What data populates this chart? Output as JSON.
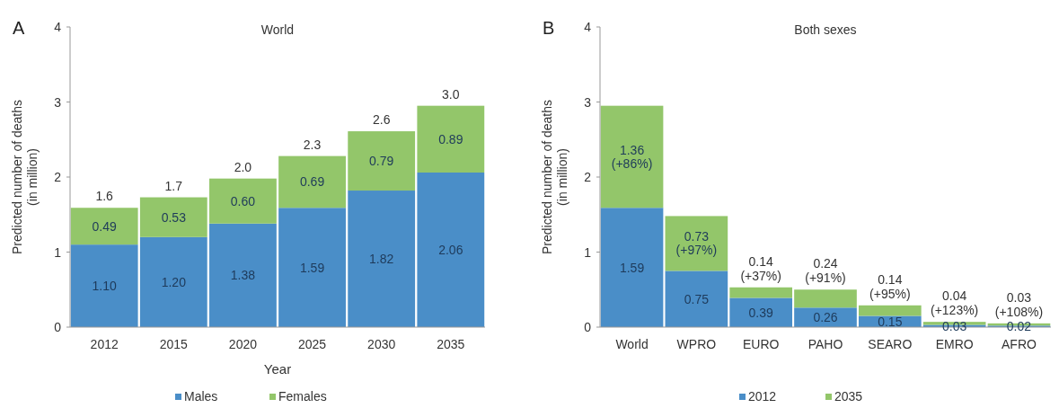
{
  "chart_data": [
    {
      "type": "bar",
      "stacked": true,
      "title": "World",
      "xlabel": "Year",
      "ylabel": "Predicted number of deaths (in million)",
      "annotations": [
        "A"
      ],
      "categories": [
        "2012",
        "2015",
        "2020",
        "2025",
        "2030",
        "2035"
      ],
      "ylim": [
        0,
        4
      ],
      "yticks": [
        0,
        1,
        2,
        3,
        4
      ],
      "legend": "bottom",
      "totals": [
        "1.6",
        "1.7",
        "2.0",
        "2.3",
        "2.6",
        "3.0"
      ],
      "series": [
        {
          "name": "Males",
          "color": "#4a8ec8",
          "values": [
            1.1,
            1.2,
            1.38,
            1.59,
            1.82,
            2.06
          ],
          "value_labels": [
            "1.10",
            "1.20",
            "1.38",
            "1.59",
            "1.82",
            "2.06"
          ]
        },
        {
          "name": "Females",
          "color": "#93c66a",
          "values": [
            0.49,
            0.53,
            0.6,
            0.69,
            0.79,
            0.89
          ],
          "value_labels": [
            "0.49",
            "0.53",
            "0.60",
            "0.69",
            "0.79",
            "0.89"
          ]
        }
      ]
    },
    {
      "type": "bar",
      "stacked": true,
      "title": "Both sexes",
      "ylabel": "Predicted number of deaths (in million)",
      "annotations": [
        "B"
      ],
      "categories": [
        "World",
        "WPRO",
        "EURO",
        "PAHO",
        "SEARO",
        "EMRO",
        "AFRO"
      ],
      "ylim": [
        0,
        4
      ],
      "yticks": [
        0,
        1,
        2,
        3,
        4
      ],
      "legend": "bottom",
      "series": [
        {
          "name": "2012",
          "color": "#4a8ec8",
          "values": [
            1.59,
            0.75,
            0.39,
            0.26,
            0.15,
            0.03,
            0.02
          ],
          "value_labels": [
            "1.59",
            "0.75",
            "0.39",
            "0.26",
            "0.15",
            "0.03",
            "0.02"
          ]
        },
        {
          "name": "2035",
          "color": "#93c66a",
          "values": [
            1.36,
            0.73,
            0.14,
            0.24,
            0.14,
            0.04,
            0.03
          ],
          "value_labels": [
            "1.36 (+86%)",
            "0.73 (+97%)",
            "0.14 (+37%)",
            "0.24 (+91%)",
            "0.14 (+95%)",
            "0.04 (+123%)",
            "0.03 (+108%)"
          ]
        }
      ]
    }
  ]
}
